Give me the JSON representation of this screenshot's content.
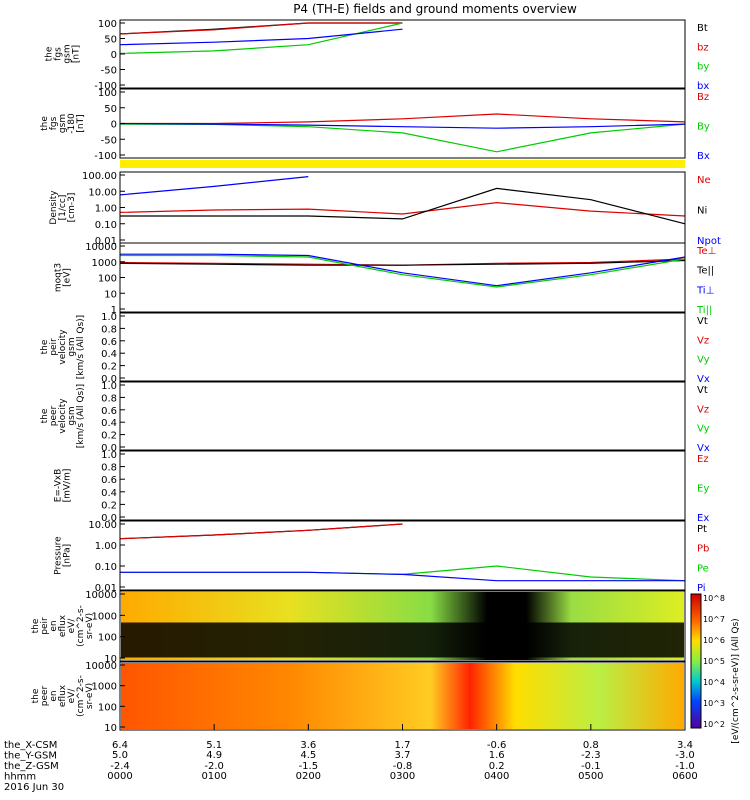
{
  "title": "P4 (TH-E) fields and ground moments overview",
  "colors": {
    "black": "#000000",
    "red": "#dd0000",
    "green": "#00cc00",
    "blue": "#0000ff",
    "yellow": "#ffee00"
  },
  "x_axis": {
    "ticks": [
      "0000",
      "0100",
      "0200",
      "0300",
      "0400",
      "0500",
      "0600"
    ],
    "row_labels": [
      "the_X-CSM",
      "the_Y-GSM",
      "the_Z-GSM",
      "hhmm",
      "2016 Jun 30"
    ],
    "x_csm": [
      "6.4",
      "5.1",
      "3.6",
      "1.7",
      "-0.6",
      "0.8",
      "3.4"
    ],
    "y_gsm": [
      "5.0",
      "4.9",
      "4.5",
      "3.7",
      "1.6",
      "-2.3",
      "-3.0"
    ],
    "z_gsm": [
      "-2.4",
      "-2.0",
      "-1.5",
      "-0.8",
      "0.2",
      "-0.1",
      "-1.0"
    ]
  },
  "panels": [
    {
      "id": "fgs",
      "ylabel_lines": [
        "the",
        "fgs",
        "gsm",
        "[nT]"
      ],
      "ticks": [
        "100",
        "50",
        "0",
        "-50",
        "-100"
      ],
      "legend": [
        "Bt",
        "bz",
        "by",
        "bx"
      ]
    },
    {
      "id": "fgs2",
      "ylabel_lines": [
        "the",
        "fgs",
        "gsm",
        "-180",
        "[nT]"
      ],
      "ticks": [
        "100",
        "50",
        "0",
        "-50",
        "-100"
      ],
      "legend": [
        "Bz",
        "By",
        "Bx"
      ]
    },
    {
      "id": "density",
      "ylabel_lines": [
        "Density",
        "[1/cc]",
        "[cm-3]"
      ],
      "ticks": [
        "100.00",
        "10.00",
        "1.00",
        "0.10",
        "0.01"
      ],
      "legend": [
        "Ne",
        "Ni",
        "Npot"
      ]
    },
    {
      "id": "temp",
      "ylabel_lines": [
        "moqt3",
        "[eV]"
      ],
      "ticks": [
        "10000",
        "1000",
        "100",
        "10",
        "1"
      ],
      "legend": [
        "Te⊥",
        "Te||",
        "Ti⊥",
        "Ti||"
      ]
    },
    {
      "id": "peir_vel",
      "ylabel_lines": [
        "the",
        "peir",
        "velocity",
        "gsm",
        "[km/s (All Qs)]"
      ],
      "ticks": [
        "1.0",
        "0.8",
        "0.6",
        "0.4",
        "0.2",
        "0.0"
      ],
      "legend": [
        "Vt",
        "Vz",
        "Vy",
        "Vx"
      ]
    },
    {
      "id": "peer_vel",
      "ylabel_lines": [
        "the",
        "peer",
        "velocity",
        "gsm",
        "[km/s (All Qs)]"
      ],
      "ticks": [
        "1.0",
        "0.8",
        "0.6",
        "0.4",
        "0.2",
        "0.0"
      ],
      "legend": [
        "Vt",
        "Vz",
        "Vy",
        "Vx"
      ]
    },
    {
      "id": "efield",
      "ylabel_lines": [
        "E=-VxB",
        "[mV/m]"
      ],
      "ticks": [
        "1.0",
        "0.8",
        "0.6",
        "0.4",
        "0.2",
        "0.0"
      ],
      "legend": [
        "Ez",
        "Ey",
        "Ex"
      ]
    },
    {
      "id": "pressure",
      "ylabel_lines": [
        "Pressure",
        "[nPa]"
      ],
      "ticks": [
        "10.00",
        "1.00",
        "0.10",
        "0.01"
      ],
      "legend": [
        "Pt",
        "Pb",
        "Pe",
        "Pi"
      ]
    },
    {
      "id": "peir_spec",
      "ylabel_lines": [
        "the",
        "peir",
        "en",
        "eflux",
        "eV/",
        "(cm^2-s-",
        "sr-eV)"
      ],
      "ticks": [
        "10000",
        "1000",
        "100",
        "10"
      ],
      "legend": []
    },
    {
      "id": "peer_spec",
      "ylabel_lines": [
        "the",
        "peer",
        "en",
        "eflux",
        "eV/",
        "(cm^2-s-",
        "sr-eV)"
      ],
      "ticks": [
        "10000",
        "1000",
        "100",
        "10"
      ],
      "legend": []
    }
  ],
  "colorbar": {
    "ticks": [
      "10^8",
      "10^7",
      "10^6",
      "10^5",
      "10^4",
      "10^3",
      "10^2"
    ],
    "label": "[eV/(cm^2-s-sr-eV)] (All Qs)"
  },
  "chart_data": {
    "type": "line",
    "title": "P4 (TH-E) fields and ground moments overview",
    "x_units": "hhmm",
    "x_range": [
      "0000",
      "0600"
    ],
    "series": [
      {
        "name": "Bt",
        "panel": "fgs",
        "x": [
          "0000",
          "0100",
          "0200",
          "0300"
        ],
        "values": [
          65,
          80,
          100,
          100
        ]
      },
      {
        "name": "bz",
        "panel": "fgs",
        "x": [
          "0000",
          "0100",
          "0200",
          "0300"
        ],
        "values": [
          65,
          78,
          100,
          100
        ]
      },
      {
        "name": "by",
        "panel": "fgs",
        "x": [
          "0000",
          "0100",
          "0200",
          "0300"
        ],
        "values": [
          2,
          10,
          30,
          100
        ]
      },
      {
        "name": "bx",
        "panel": "fgs",
        "x": [
          "0000",
          "0100",
          "0200",
          "0300"
        ],
        "values": [
          30,
          38,
          50,
          80
        ]
      },
      {
        "name": "Bz",
        "panel": "fgs2",
        "x": [
          "0000",
          "0100",
          "0200",
          "0300",
          "0400",
          "0500",
          "0600"
        ],
        "values": [
          0,
          0,
          5,
          15,
          30,
          15,
          5
        ]
      },
      {
        "name": "By",
        "panel": "fgs2",
        "x": [
          "0000",
          "0100",
          "0200",
          "0300",
          "0400",
          "0500",
          "0600"
        ],
        "values": [
          -2,
          -3,
          -10,
          -30,
          -90,
          -30,
          -2
        ]
      },
      {
        "name": "Bx",
        "panel": "fgs2",
        "x": [
          "0000",
          "0100",
          "0200",
          "0300",
          "0400",
          "0500",
          "0600"
        ],
        "values": [
          0,
          -2,
          -5,
          -10,
          -15,
          -10,
          -2
        ]
      },
      {
        "name": "Ne",
        "panel": "density",
        "x": [
          "0000",
          "0100",
          "0200",
          "0300",
          "0400",
          "0500",
          "0600"
        ],
        "values": [
          0.5,
          0.7,
          0.8,
          0.4,
          2.0,
          0.6,
          0.3
        ]
      },
      {
        "name": "Ni",
        "panel": "density",
        "x": [
          "0000",
          "0100",
          "0200",
          "0300",
          "0400",
          "0500",
          "0600"
        ],
        "values": [
          0.3,
          0.3,
          0.3,
          0.2,
          15,
          3,
          0.1
        ]
      },
      {
        "name": "Npot",
        "panel": "density",
        "x": [
          "0000",
          "0100",
          "0200"
        ],
        "values": [
          6,
          20,
          80
        ]
      },
      {
        "name": "Te⊥",
        "panel": "temp",
        "x": [
          "0000",
          "0100",
          "0200",
          "0300",
          "0400",
          "0500",
          "0600"
        ],
        "values": [
          900,
          800,
          700,
          600,
          800,
          900,
          1500
        ]
      },
      {
        "name": "Te||",
        "panel": "temp",
        "x": [
          "0000",
          "0100",
          "0200",
          "0300",
          "0400",
          "0500",
          "0600"
        ],
        "values": [
          800,
          700,
          600,
          600,
          700,
          800,
          1200
        ]
      },
      {
        "name": "Ti⊥",
        "panel": "temp",
        "x": [
          "0000",
          "0100",
          "0200",
          "0300",
          "0400",
          "0500",
          "0600"
        ],
        "values": [
          3000,
          3000,
          2500,
          200,
          30,
          200,
          2000
        ]
      },
      {
        "name": "Ti||",
        "panel": "temp",
        "x": [
          "0000",
          "0100",
          "0200",
          "0300",
          "0400",
          "0500",
          "0600"
        ],
        "values": [
          2500,
          2500,
          2000,
          150,
          25,
          150,
          1500
        ]
      },
      {
        "name": "Pt",
        "panel": "pressure",
        "x": [
          "0000",
          "0100",
          "0200",
          "0300"
        ],
        "values": [
          2,
          3,
          5,
          10
        ]
      },
      {
        "name": "Pb",
        "panel": "pressure",
        "x": [
          "0000",
          "0100",
          "0200",
          "0300"
        ],
        "values": [
          2,
          3,
          5,
          10
        ]
      },
      {
        "name": "Pe",
        "panel": "pressure",
        "x": [
          "0000",
          "0100",
          "0200",
          "0300",
          "0400",
          "0500",
          "0600"
        ],
        "values": [
          0.05,
          0.05,
          0.05,
          0.04,
          0.1,
          0.03,
          0.02
        ]
      },
      {
        "name": "Pi",
        "panel": "pressure",
        "x": [
          "0000",
          "0100",
          "0200",
          "0300",
          "0400",
          "0500",
          "0600"
        ],
        "values": [
          0.05,
          0.05,
          0.05,
          0.04,
          0.02,
          0.02,
          0.02
        ]
      }
    ]
  }
}
